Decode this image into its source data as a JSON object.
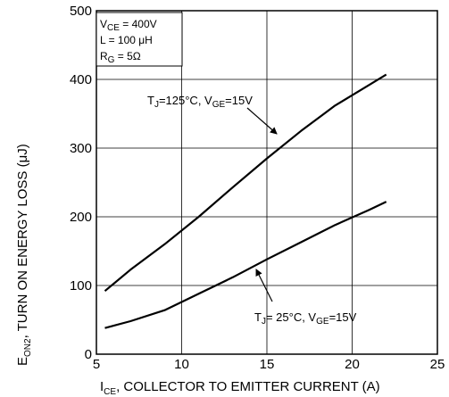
{
  "chart_data": {
    "type": "line",
    "xlabel": {
      "main": "I",
      "sub": "CE",
      "rest": ", COLLECTOR TO EMITTER CURRENT (A)"
    },
    "ylabel": {
      "main": "E",
      "sub": "ON2",
      "rest": ", TURN ON ENERGY LOSS (μJ)"
    },
    "xlim": [
      5,
      25
    ],
    "ylim": [
      0,
      500
    ],
    "xticks": [
      5,
      10,
      15,
      20,
      25
    ],
    "yticks": [
      0,
      100,
      200,
      300,
      400,
      500
    ],
    "grid": true,
    "conditions": [
      {
        "main": "V",
        "sub": "CE",
        "rest": " = 400V"
      },
      {
        "main": "L = 100 μH",
        "sub": "",
        "rest": ""
      },
      {
        "main": "R",
        "sub": "G",
        "rest": " = 5Ω"
      }
    ],
    "series": [
      {
        "label": {
          "p1": "T",
          "s1": "J",
          "p2": "=125°C, V",
          "s2": "GE",
          "p3": "=15V"
        },
        "x": [
          5.5,
          7,
          9,
          11,
          13,
          15,
          17,
          19,
          21,
          22
        ],
        "y": [
          92,
          123,
          160,
          200,
          243,
          285,
          325,
          362,
          392,
          407
        ]
      },
      {
        "label": {
          "p1": "T",
          "s1": "J",
          "p2": "= 25°C, V",
          "s2": "GE",
          "p3": "=15V"
        },
        "x": [
          5.5,
          7,
          9,
          11,
          13,
          15,
          17,
          19,
          21,
          22
        ],
        "y": [
          38,
          48,
          64,
          88,
          112,
          138,
          163,
          188,
          210,
          222
        ]
      }
    ]
  }
}
